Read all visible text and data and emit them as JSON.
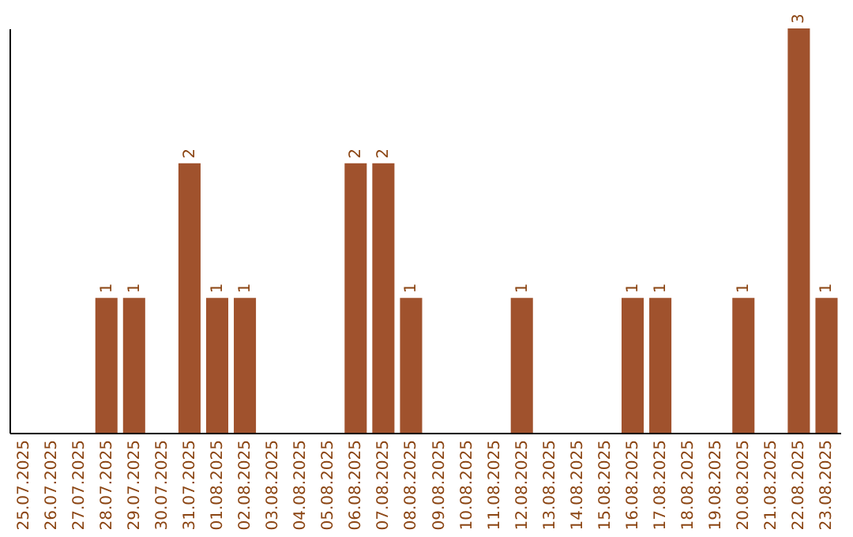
{
  "chart_data": {
    "type": "bar",
    "categories": [
      "25.07.2025",
      "26.07.2025",
      "27.07.2025",
      "28.07.2025",
      "29.07.2025",
      "30.07.2025",
      "31.07.2025",
      "01.08.2025",
      "02.08.2025",
      "03.08.2025",
      "04.08.2025",
      "05.08.2025",
      "06.08.2025",
      "07.08.2025",
      "08.08.2025",
      "09.08.2025",
      "10.08.2025",
      "11.08.2025",
      "12.08.2025",
      "13.08.2025",
      "14.08.2025",
      "15.08.2025",
      "16.08.2025",
      "17.08.2025",
      "18.08.2025",
      "19.08.2025",
      "20.08.2025",
      "21.08.2025",
      "22.08.2025",
      "23.08.2025"
    ],
    "values": [
      0,
      0,
      0,
      1,
      1,
      0,
      2,
      1,
      1,
      0,
      0,
      0,
      2,
      2,
      1,
      0,
      0,
      0,
      1,
      0,
      0,
      0,
      1,
      1,
      0,
      0,
      1,
      0,
      3,
      1
    ],
    "value_labels": [
      null,
      null,
      null,
      "1",
      "1",
      null,
      "2",
      "1",
      "1",
      null,
      null,
      null,
      "2",
      "2",
      "1",
      null,
      null,
      null,
      "1",
      null,
      null,
      null,
      "1",
      "1",
      null,
      null,
      "1",
      null,
      "3",
      "1"
    ],
    "color": "#a0522d",
    "grid": false
  }
}
